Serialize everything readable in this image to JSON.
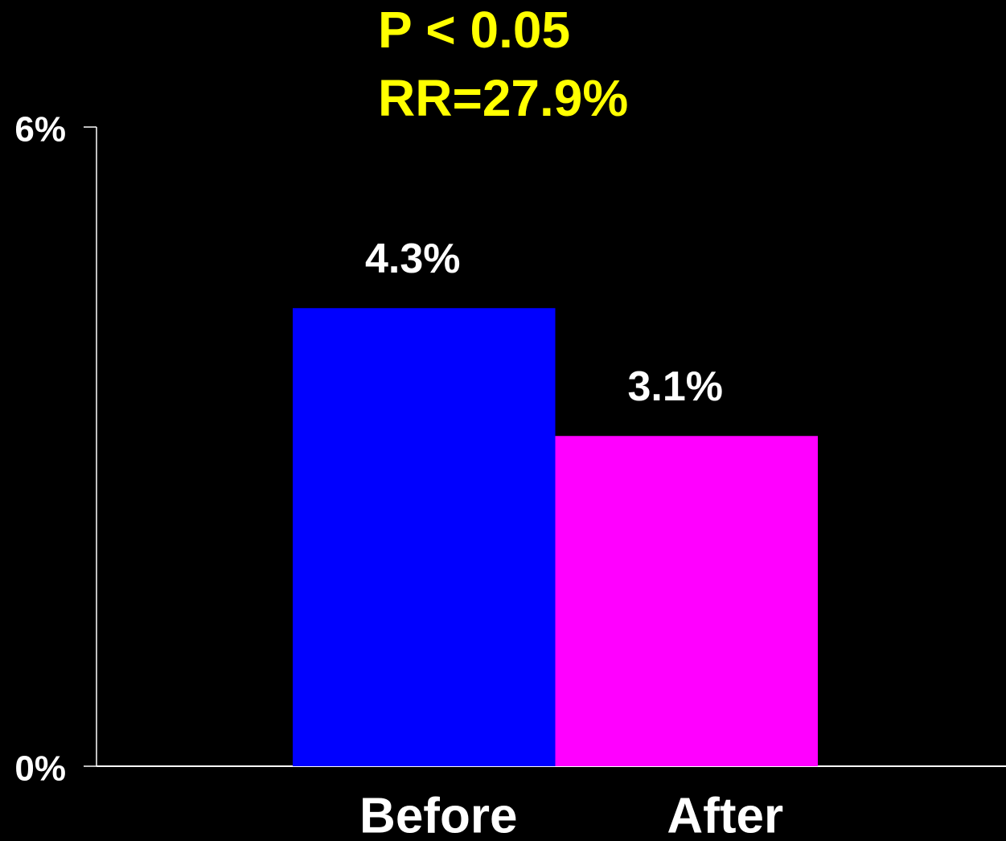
{
  "chart_data": {
    "type": "bar",
    "annotations": [
      "P < 0.05",
      "RR=27.9%"
    ],
    "categories": [
      "Before",
      "After"
    ],
    "values": [
      4.3,
      3.1
    ],
    "value_labels": [
      "4.3%",
      "3.1%"
    ],
    "colors": [
      "#0000ff",
      "#ff00ff"
    ],
    "ylim": [
      0,
      6
    ],
    "yticks": [
      {
        "value": 0,
        "label": "0%"
      },
      {
        "value": 6,
        "label": "6%"
      }
    ]
  }
}
